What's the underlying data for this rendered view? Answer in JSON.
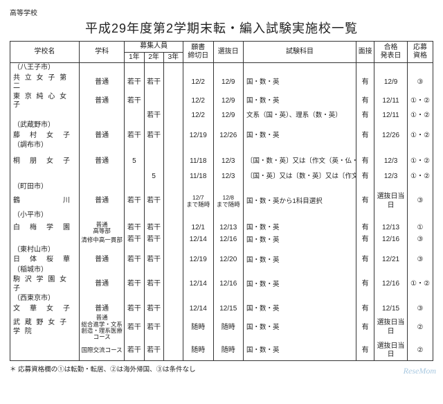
{
  "top_label": "高等学校",
  "title": "平成29年度第2学期末転・編入試験実施校一覧",
  "header": {
    "school": "学校名",
    "dept": "学科",
    "cap": "募集人員",
    "y1": "1年",
    "y2": "2年",
    "y3": "3年",
    "deadline": "願書\n締切日",
    "sel_date": "選抜日",
    "subjects": "試験科目",
    "interview": "面接",
    "announce": "合格\n発表日",
    "qualif": "応募\n資格"
  },
  "rows": [
    {
      "type": "city",
      "name": "（八王子市）"
    },
    {
      "type": "data",
      "school": "共 立 女 子 第 二",
      "dept": "普通",
      "y1": "若干",
      "y2": "若干",
      "y3": "",
      "deadline": "12/2",
      "sel": "12/9",
      "subj": "国・数・英",
      "int": "有",
      "ann": "12/9",
      "qual": "③"
    },
    {
      "type": "data",
      "school": "東 京 純 心 女 子",
      "dept": "普通",
      "y1": "若干",
      "y2": "",
      "y3": "",
      "deadline": "12/2",
      "sel": "12/9",
      "subj": "国・数・英",
      "int": "有",
      "ann": "12/11",
      "qual": "①・②"
    },
    {
      "type": "data",
      "school": "",
      "dept": "",
      "y1": "",
      "y2": "若干",
      "y3": "",
      "deadline": "12/2",
      "sel": "12/9",
      "subj": "文系（国・英）、理系（数・英）",
      "int": "有",
      "ann": "12/11",
      "qual": "①・②"
    },
    {
      "type": "city",
      "name": "（武蔵野市）"
    },
    {
      "type": "data",
      "school": "藤　村　女　子",
      "dept": "普通",
      "y1": "若干",
      "y2": "若干",
      "y3": "",
      "deadline": "12/19",
      "sel": "12/26",
      "subj": "国・数・英",
      "int": "有",
      "ann": "12/26",
      "qual": "①・②"
    },
    {
      "type": "city",
      "name": "（調布市）"
    },
    {
      "type": "sp"
    },
    {
      "type": "data",
      "school": "桐　朋　女　子",
      "dept": "普通",
      "y1": "5",
      "y2": "",
      "y3": "",
      "deadline": "11/18",
      "sel": "12/3",
      "subj": "〔国・数・英〕又は〔作文（英・仏・独から選択）〕",
      "int": "有",
      "ann": "12/3",
      "qual": "①・②"
    },
    {
      "type": "sp"
    },
    {
      "type": "data",
      "school": "",
      "dept": "",
      "y1": "",
      "y2": "5",
      "y3": "",
      "deadline": "11/18",
      "sel": "12/3",
      "subj": "〔国・英〕又は〔数・英〕又は〔作文（英・仏・独から選択）〕",
      "int": "有",
      "ann": "12/3",
      "qual": "①・②"
    },
    {
      "type": "city",
      "name": "（町田市）"
    },
    {
      "type": "data",
      "school": "鶴　　　　　川",
      "dept": "普通",
      "y1": "若干",
      "y2": "若干",
      "y3": "",
      "deadline": "12/7\nまで随時",
      "sel": "12/8\nまで随時",
      "subj": "国・数・英から1科目選択",
      "int": "有",
      "ann": "選抜日当日",
      "qual": "③"
    },
    {
      "type": "city",
      "name": "（小平市）"
    },
    {
      "type": "data",
      "school": "白　梅　学　園",
      "dept": "普通\n高等部",
      "y1": "若干",
      "y2": "若干",
      "y3": "",
      "deadline": "12/1",
      "sel": "12/13",
      "subj": "国・数・英",
      "int": "有",
      "ann": "12/13",
      "qual": "①"
    },
    {
      "type": "data",
      "school": "",
      "dept": "清修中高一貫部",
      "y1": "若干",
      "y2": "若干",
      "y3": "",
      "deadline": "12/14",
      "sel": "12/16",
      "subj": "国・数・英",
      "int": "有",
      "ann": "12/16",
      "qual": "③"
    },
    {
      "type": "city",
      "name": "（東村山市）"
    },
    {
      "type": "data",
      "school": "日　体　桜　華",
      "dept": "普通",
      "y1": "若干",
      "y2": "若干",
      "y3": "",
      "deadline": "12/19",
      "sel": "12/20",
      "subj": "国・数・英",
      "int": "有",
      "ann": "12/21",
      "qual": "③"
    },
    {
      "type": "city",
      "name": "（稲城市）"
    },
    {
      "type": "data",
      "school": "駒 沢 学 園 女 子",
      "dept": "普通",
      "y1": "若干",
      "y2": "若干",
      "y3": "",
      "deadline": "12/14",
      "sel": "12/16",
      "subj": "国・数・英",
      "int": "有",
      "ann": "12/16",
      "qual": "①・②"
    },
    {
      "type": "city",
      "name": "（西東京市）"
    },
    {
      "type": "data",
      "school": "文　華　女　子",
      "dept": "普通",
      "y1": "若干",
      "y2": "若干",
      "y3": "",
      "deadline": "12/14",
      "sel": "12/15",
      "subj": "国・数・英",
      "int": "有",
      "ann": "12/15",
      "qual": "③"
    },
    {
      "type": "data",
      "school": "武 蔵 野 女 子 学 院",
      "dept": "普通\n総合進学・文系創造・理系医療コース",
      "y1": "若干",
      "y2": "若干",
      "y3": "",
      "deadline": "随時",
      "sel": "随時",
      "subj": "国・数・英",
      "int": "有",
      "ann": "選抜日当日",
      "qual": "②"
    },
    {
      "type": "data",
      "school": "",
      "dept": "国際交流コース",
      "y1": "若干",
      "y2": "若干",
      "y3": "",
      "deadline": "随時",
      "sel": "随時",
      "subj": "国・数・英",
      "int": "有",
      "ann": "選抜日当日",
      "qual": "②"
    }
  ],
  "footnote": "＊ 応募資格欄の①は転勤・転居、②は海外帰国、③は条件なし",
  "watermark": "ReseMom"
}
